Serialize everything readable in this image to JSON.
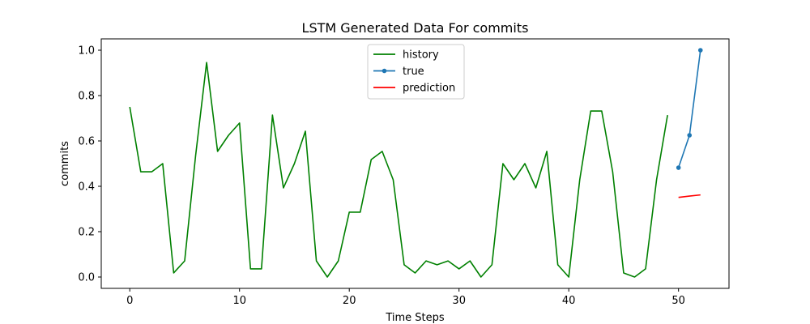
{
  "chart_data": {
    "type": "line",
    "title": "LSTM Generated Data For commits",
    "xlabel": "Time Steps",
    "ylabel": "commits",
    "xlim": [
      -2.6,
      54.6
    ],
    "ylim": [
      -0.05,
      1.05
    ],
    "xticks": [
      0,
      10,
      20,
      30,
      40,
      50
    ],
    "yticks": [
      0.0,
      0.2,
      0.4,
      0.6,
      0.8,
      1.0
    ],
    "xtick_labels": [
      "0",
      "10",
      "20",
      "30",
      "40",
      "50"
    ],
    "ytick_labels": [
      "0.0",
      "0.2",
      "0.4",
      "0.6",
      "0.8",
      "1.0"
    ],
    "grid": false,
    "legend_position": "top-center",
    "series": [
      {
        "name": "history",
        "color": "#008000",
        "marker": false,
        "x": [
          0,
          1,
          2,
          3,
          4,
          5,
          6,
          7,
          8,
          9,
          10,
          11,
          12,
          13,
          14,
          15,
          16,
          17,
          18,
          19,
          20,
          21,
          22,
          23,
          24,
          25,
          26,
          27,
          28,
          29,
          30,
          31,
          32,
          33,
          34,
          35,
          36,
          37,
          38,
          39,
          40,
          41,
          42,
          43,
          44,
          45,
          46,
          47,
          48,
          49
        ],
        "y": [
          0.75,
          0.464,
          0.464,
          0.5,
          0.018,
          0.071,
          0.536,
          0.946,
          0.554,
          0.625,
          0.679,
          0.036,
          0.036,
          0.714,
          0.393,
          0.5,
          0.643,
          0.071,
          0.0,
          0.071,
          0.286,
          0.286,
          0.518,
          0.554,
          0.429,
          0.054,
          0.018,
          0.071,
          0.054,
          0.071,
          0.036,
          0.071,
          0.0,
          0.054,
          0.5,
          0.429,
          0.5,
          0.393,
          0.554,
          0.054,
          0.0,
          0.429,
          0.732,
          0.732,
          0.464,
          0.018,
          0.0,
          0.036,
          0.429,
          0.714
        ]
      },
      {
        "name": "true",
        "color": "#1f77b4",
        "marker": true,
        "x": [
          50,
          51,
          52
        ],
        "y": [
          0.482,
          0.625,
          1.0
        ]
      },
      {
        "name": "prediction",
        "color": "#ff0000",
        "marker": false,
        "x": [
          50,
          51,
          52
        ],
        "y": [
          0.351,
          0.357,
          0.362
        ]
      }
    ]
  }
}
